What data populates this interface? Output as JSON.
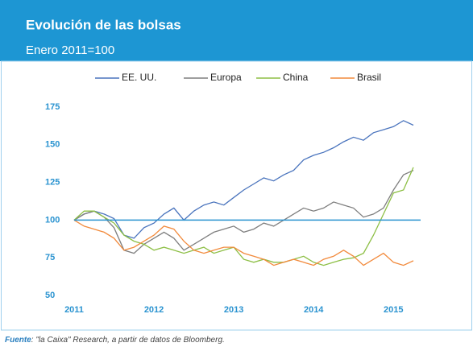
{
  "chart_data": {
    "type": "line",
    "title": "Evolución de las bolsas",
    "subtitle": "Enero 2011=100",
    "source_label": "Fuente",
    "source_text": ": \"la Caixa\" Research, a partir de datos de Bloomberg.",
    "x": [
      2011,
      2011.125,
      2011.25,
      2011.375,
      2011.5,
      2011.625,
      2011.75,
      2011.875,
      2012,
      2012.125,
      2012.25,
      2012.375,
      2012.5,
      2012.625,
      2012.75,
      2012.875,
      2013,
      2013.125,
      2013.25,
      2013.375,
      2013.5,
      2013.625,
      2013.75,
      2013.875,
      2014,
      2014.125,
      2014.25,
      2014.375,
      2014.5,
      2014.625,
      2014.75,
      2014.875,
      2015,
      2015.125,
      2015.25
    ],
    "series": [
      {
        "name": "EE. UU.",
        "color": "#4a74bd",
        "values": [
          100,
          104,
          106,
          104,
          101,
          90,
          88,
          95,
          98,
          104,
          108,
          100,
          106,
          110,
          112,
          110,
          115,
          120,
          124,
          128,
          126,
          130,
          133,
          140,
          143,
          145,
          148,
          152,
          155,
          153,
          158,
          160,
          162,
          166,
          163
        ]
      },
      {
        "name": "Europa",
        "color": "#7f7f7f",
        "values": [
          100,
          104,
          106,
          102,
          95,
          80,
          78,
          84,
          88,
          92,
          88,
          80,
          84,
          88,
          92,
          94,
          96,
          92,
          94,
          98,
          96,
          100,
          104,
          108,
          106,
          108,
          112,
          110,
          108,
          102,
          104,
          108,
          120,
          130,
          133
        ]
      },
      {
        "name": "China",
        "color": "#8dbf45",
        "values": [
          100,
          106,
          106,
          102,
          98,
          90,
          86,
          84,
          80,
          82,
          80,
          78,
          80,
          82,
          78,
          80,
          82,
          74,
          72,
          74,
          72,
          72,
          74,
          76,
          72,
          70,
          72,
          74,
          75,
          78,
          90,
          104,
          118,
          120,
          135
        ]
      },
      {
        "name": "Brasil",
        "color": "#f28a3c",
        "values": [
          100,
          96,
          94,
          92,
          88,
          80,
          82,
          86,
          90,
          96,
          94,
          86,
          80,
          78,
          80,
          82,
          82,
          78,
          76,
          74,
          70,
          72,
          74,
          72,
          70,
          74,
          76,
          80,
          76,
          70,
          74,
          78,
          72,
          70,
          73
        ]
      }
    ],
    "reference_line": 100,
    "reference_color": "#2a93d0",
    "xlim": [
      2011,
      2015.3
    ],
    "xticks": [
      2011,
      2012,
      2013,
      2014,
      2015
    ],
    "ylim": [
      50,
      175
    ],
    "yticks": [
      50,
      75,
      100,
      125,
      150,
      175
    ],
    "legend": "top"
  }
}
